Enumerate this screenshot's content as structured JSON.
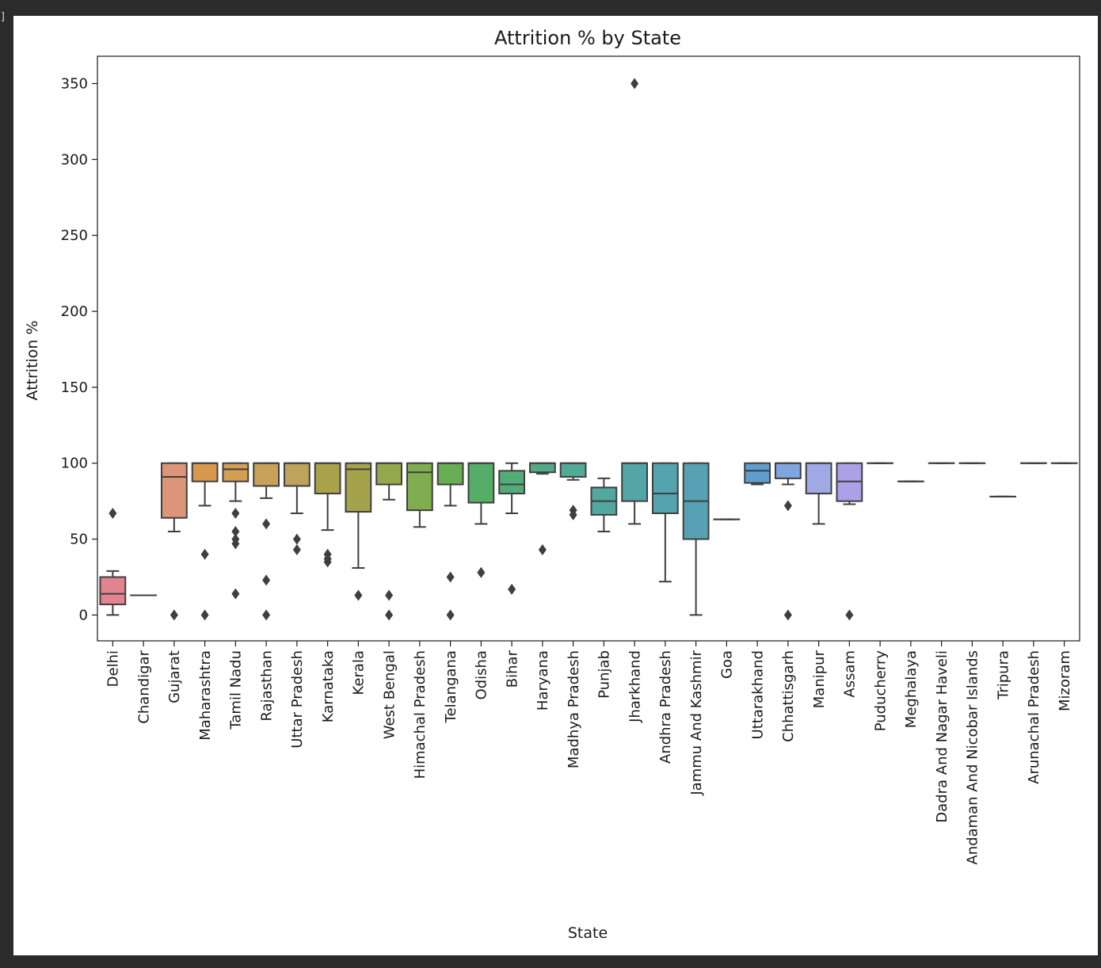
{
  "chart_data": {
    "type": "box",
    "title": "Attrition % by State",
    "xlabel": "State",
    "ylabel": "Attrition %",
    "ylim": [
      -17,
      368
    ],
    "yticks": [
      0,
      50,
      100,
      150,
      200,
      250,
      300,
      350
    ],
    "grid": false,
    "legend": "none",
    "colors": {
      "box_edge": "#3f3f3f",
      "flier": "#3f3f3f",
      "axis": "#1a1a1a"
    },
    "boxes": [
      {
        "name": "Delhi",
        "color": "#e1848f",
        "whislo": 0,
        "q1": 7,
        "med": 14,
        "q3": 25,
        "whishi": 29,
        "fliers": [
          67
        ]
      },
      {
        "name": "Chandigar",
        "color": "#dd8a6e",
        "whislo": 13,
        "q1": 13,
        "med": 13,
        "q3": 13,
        "whishi": 13,
        "fliers": []
      },
      {
        "name": "Gujarat",
        "color": "#dc9578",
        "whislo": 55,
        "q1": 64,
        "med": 91,
        "q3": 100,
        "whishi": 100,
        "fliers": [
          0
        ]
      },
      {
        "name": "Maharashtra",
        "color": "#d7984e",
        "whislo": 72,
        "q1": 88,
        "med": 100,
        "q3": 100,
        "whishi": 100,
        "fliers": [
          40,
          0
        ]
      },
      {
        "name": "Tamil Nadu",
        "color": "#d49f54",
        "whislo": 75,
        "q1": 88,
        "med": 96,
        "q3": 100,
        "whishi": 100,
        "fliers": [
          67,
          55,
          50,
          47,
          14
        ]
      },
      {
        "name": "Rajasthan",
        "color": "#c9a25a",
        "whislo": 77,
        "q1": 85,
        "med": 100,
        "q3": 100,
        "whishi": 100,
        "fliers": [
          60,
          23,
          0
        ]
      },
      {
        "name": "Uttar Pradesh",
        "color": "#bfa35a",
        "whislo": 67,
        "q1": 85,
        "med": 100,
        "q3": 100,
        "whishi": 100,
        "fliers": [
          50,
          43
        ]
      },
      {
        "name": "Karnataka",
        "color": "#a8a24a",
        "whislo": 56,
        "q1": 80,
        "med": 100,
        "q3": 100,
        "whishi": 100,
        "fliers": [
          40,
          37,
          35
        ]
      },
      {
        "name": "Kerala",
        "color": "#a4a24a",
        "whislo": 31,
        "q1": 68,
        "med": 96,
        "q3": 100,
        "whishi": 100,
        "fliers": [
          13
        ]
      },
      {
        "name": "West Bengal",
        "color": "#94a84d",
        "whislo": 76,
        "q1": 86,
        "med": 100,
        "q3": 100,
        "whishi": 100,
        "fliers": [
          13,
          0
        ]
      },
      {
        "name": "Himachal Pradesh",
        "color": "#7fad4f",
        "whislo": 58,
        "q1": 69,
        "med": 94,
        "q3": 100,
        "whishi": 100,
        "fliers": []
      },
      {
        "name": "Telangana",
        "color": "#68ae55",
        "whislo": 72,
        "q1": 86,
        "med": 100,
        "q3": 100,
        "whishi": 100,
        "fliers": [
          25,
          0
        ]
      },
      {
        "name": "Odisha",
        "color": "#55ad68",
        "whislo": 60,
        "q1": 74,
        "med": 100,
        "q3": 100,
        "whishi": 100,
        "fliers": [
          28
        ]
      },
      {
        "name": "Bihar",
        "color": "#52ac78",
        "whislo": 67,
        "q1": 80,
        "med": 86,
        "q3": 95,
        "whishi": 100,
        "fliers": [
          17
        ]
      },
      {
        "name": "Haryana",
        "color": "#52ab86",
        "whislo": 93,
        "q1": 94,
        "med": 100,
        "q3": 100,
        "whishi": 100,
        "fliers": [
          43
        ]
      },
      {
        "name": "Madhya Pradesh",
        "color": "#52a996",
        "whislo": 89,
        "q1": 91,
        "med": 100,
        "q3": 100,
        "whishi": 100,
        "fliers": [
          69,
          66
        ]
      },
      {
        "name": "Punjab",
        "color": "#52a7a0",
        "whislo": 55,
        "q1": 66,
        "med": 75,
        "q3": 84,
        "whishi": 90,
        "fliers": []
      },
      {
        "name": "Jharkhand",
        "color": "#53a5a8",
        "whislo": 60,
        "q1": 75,
        "med": 100,
        "q3": 100,
        "whishi": 100,
        "fliers": [
          350
        ]
      },
      {
        "name": "Andhra Pradesh",
        "color": "#55a3ae",
        "whislo": 22,
        "q1": 67,
        "med": 80,
        "q3": 100,
        "whishi": 100,
        "fliers": []
      },
      {
        "name": "Jammu And Kashmir",
        "color": "#57a1b5",
        "whislo": 0,
        "q1": 50,
        "med": 75,
        "q3": 100,
        "whishi": 100,
        "fliers": []
      },
      {
        "name": "Goa",
        "color": "#5a9fbc",
        "whislo": 63,
        "q1": 63,
        "med": 63,
        "q3": 63,
        "whishi": 63,
        "fliers": []
      },
      {
        "name": "Uttarakhand",
        "color": "#5e9fd0",
        "whislo": 86,
        "q1": 87,
        "med": 95,
        "q3": 100,
        "whishi": 100,
        "fliers": []
      },
      {
        "name": "Chhattisgarh",
        "color": "#80a6e0",
        "whislo": 86,
        "q1": 90,
        "med": 100,
        "q3": 100,
        "whishi": 100,
        "fliers": [
          72,
          0
        ]
      },
      {
        "name": "Manipur",
        "color": "#9ea9e6",
        "whislo": 60,
        "q1": 80,
        "med": 100,
        "q3": 100,
        "whishi": 100,
        "fliers": []
      },
      {
        "name": "Assam",
        "color": "#aba1e6",
        "whislo": 73,
        "q1": 75,
        "med": 88,
        "q3": 100,
        "whishi": 100,
        "fliers": [
          0
        ]
      },
      {
        "name": "Puducherry",
        "color": "#b59de3",
        "whislo": 100,
        "q1": 100,
        "med": 100,
        "q3": 100,
        "whishi": 100,
        "fliers": []
      },
      {
        "name": "Meghalaya",
        "color": "#c397dd",
        "whislo": 88,
        "q1": 88,
        "med": 88,
        "q3": 88,
        "whishi": 88,
        "fliers": []
      },
      {
        "name": "Dadra And Nagar Haveli",
        "color": "#d28fd6",
        "whislo": 100,
        "q1": 100,
        "med": 100,
        "q3": 100,
        "whishi": 100,
        "fliers": []
      },
      {
        "name": "Andaman And Nicobar Islands",
        "color": "#dd8ccb",
        "whislo": 100,
        "q1": 100,
        "med": 100,
        "q3": 100,
        "whishi": 100,
        "fliers": []
      },
      {
        "name": "Tripura",
        "color": "#e28bbd",
        "whislo": 78,
        "q1": 78,
        "med": 78,
        "q3": 78,
        "whishi": 78,
        "fliers": []
      },
      {
        "name": "Arunachal Pradesh",
        "color": "#e38aac",
        "whislo": 100,
        "q1": 100,
        "med": 100,
        "q3": 100,
        "whishi": 100,
        "fliers": []
      },
      {
        "name": "Mizoram",
        "color": "#e3889c",
        "whislo": 100,
        "q1": 100,
        "med": 100,
        "q3": 100,
        "whishi": 100,
        "fliers": []
      }
    ]
  }
}
